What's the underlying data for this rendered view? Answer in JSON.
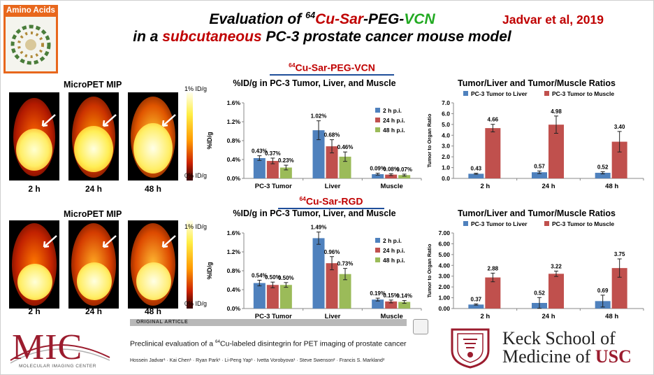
{
  "header": {
    "title_part1": "Evaluation of ",
    "title_isotope": "64",
    "title_cu_sar": "Cu-Sar",
    "title_peg": "-PEG-",
    "title_vcn": "VCN",
    "title_line2_part1": "in a ",
    "title_line2_sub": "subcutaneous",
    "title_line2_part2": " PC-3 prostate cancer mouse model",
    "citation": "Jadvar et al, 2019"
  },
  "journal": {
    "name": "Amino Acids"
  },
  "colors": {
    "accent_red": "#c00000",
    "green": "#22aa22",
    "bar_blue": "#4f81bd",
    "bar_red": "#c0504d",
    "bar_green": "#9bbb59",
    "usc_cardinal": "#9b1c2e"
  },
  "sections": [
    {
      "label_isotope": "64",
      "label_text": "Cu-Sar-PEG-VCN",
      "mip": {
        "title": "MicroPET MIP",
        "times": [
          "2 h",
          "24 h",
          "48 h"
        ],
        "scale_max": "1% ID/g",
        "scale_min": "0% ID/g"
      }
    },
    {
      "label_isotope": "64",
      "label_text": "Cu-Sar-RGD",
      "mip": {
        "title": "MicroPET MIP",
        "times": [
          "2 h",
          "24 h",
          "48 h"
        ],
        "scale_max": "1% ID/g",
        "scale_min": "0% ID/g"
      }
    }
  ],
  "chart_data": [
    {
      "type": "bar",
      "title": "%ID/g in PC-3 Tumor, Liver, and Muscle",
      "ylabel": "%ID/g",
      "ylim": [
        0,
        1.6
      ],
      "yticks": [
        "0.0%",
        "0.4%",
        "0.8%",
        "1.2%",
        "1.6%"
      ],
      "ytick_values": [
        0,
        0.4,
        0.8,
        1.2,
        1.6
      ],
      "categories": [
        "PC-3 Tumor",
        "Liver",
        "Muscle"
      ],
      "series": [
        {
          "name": "2 h p.i.",
          "values": [
            0.43,
            1.02,
            0.09
          ],
          "labels": [
            "0.43%",
            "1.02%",
            "0.09%"
          ],
          "err": [
            0.05,
            0.2,
            0.02
          ],
          "color": "#4f81bd"
        },
        {
          "name": "24 h p.i.",
          "values": [
            0.37,
            0.68,
            0.08
          ],
          "labels": [
            "0.37%",
            "0.68%",
            "0.08%"
          ],
          "err": [
            0.06,
            0.14,
            0.02
          ],
          "color": "#c0504d"
        },
        {
          "name": "48 h p.i.",
          "values": [
            0.23,
            0.46,
            0.07
          ],
          "labels": [
            "0.23%",
            "0.46%",
            "0.07%"
          ],
          "err": [
            0.05,
            0.1,
            0.02
          ],
          "color": "#9bbb59"
        }
      ],
      "legend": "right"
    },
    {
      "type": "bar",
      "title": "Tumor/Liver and Tumor/Muscle Ratios",
      "ylabel": "Tumor to Organ Ratio",
      "ylim": [
        0,
        7
      ],
      "yticks": [
        "0.0",
        "1.0",
        "2.0",
        "3.0",
        "4.0",
        "5.0",
        "6.0",
        "7.0"
      ],
      "ytick_values": [
        0,
        1,
        2,
        3,
        4,
        5,
        6,
        7
      ],
      "categories": [
        "2 h",
        "24 h",
        "48 h"
      ],
      "series": [
        {
          "name": "PC-3 Tumor to Liver",
          "values": [
            0.43,
            0.57,
            0.52
          ],
          "labels": [
            "0.43",
            "0.57",
            "0.52"
          ],
          "err": [
            0.05,
            0.12,
            0.1
          ],
          "color": "#4f81bd"
        },
        {
          "name": "PC-3 Tumor to Muscle",
          "values": [
            4.66,
            4.98,
            3.4
          ],
          "labels": [
            "4.66",
            "4.98",
            "3.40"
          ],
          "err": [
            0.35,
            0.8,
            0.95
          ],
          "color": "#c0504d"
        }
      ],
      "legend": "top"
    },
    {
      "type": "bar",
      "title": "%ID/g in PC-3 Tumor, Liver, and Muscle",
      "ylabel": "%ID/g",
      "ylim": [
        0,
        1.6
      ],
      "yticks": [
        "0.0%",
        "0.4%",
        "0.8%",
        "1.2%",
        "1.6%"
      ],
      "ytick_values": [
        0,
        0.4,
        0.8,
        1.2,
        1.6
      ],
      "categories": [
        "PC-3 Tumor",
        "Liver",
        "Muscle"
      ],
      "series": [
        {
          "name": "2 h p.i.",
          "values": [
            0.54,
            1.49,
            0.19
          ],
          "labels": [
            "0.54%",
            "1.49%",
            "0.19%"
          ],
          "err": [
            0.06,
            0.13,
            0.03
          ],
          "color": "#4f81bd"
        },
        {
          "name": "24 h p.i.",
          "values": [
            0.5,
            0.96,
            0.15
          ],
          "labels": [
            "0.50%",
            "0.96%",
            "0.15%"
          ],
          "err": [
            0.06,
            0.14,
            0.03
          ],
          "color": "#c0504d"
        },
        {
          "name": "48 h p.i.",
          "values": [
            0.5,
            0.73,
            0.14
          ],
          "labels": [
            "0.50%",
            "0.73%",
            "0.14%"
          ],
          "err": [
            0.05,
            0.12,
            0.03
          ],
          "color": "#9bbb59"
        }
      ],
      "legend": "right"
    },
    {
      "type": "bar",
      "title": "Tumor/Liver and Tumor/Muscle Ratios",
      "ylabel": "Tumor to Organ Ratio",
      "ylim": [
        0,
        7
      ],
      "yticks": [
        "0.00",
        "1.00",
        "2.00",
        "3.00",
        "4.00",
        "5.00",
        "6.00",
        "7.00"
      ],
      "ytick_values": [
        0,
        1,
        2,
        3,
        4,
        5,
        6,
        7
      ],
      "categories": [
        "2 h",
        "24 h",
        "48 h"
      ],
      "series": [
        {
          "name": "PC-3 Tumor to Liver",
          "values": [
            0.37,
            0.52,
            0.69
          ],
          "labels": [
            "0.37",
            "0.52",
            "0.69"
          ],
          "err": [
            0.06,
            0.5,
            0.55
          ],
          "color": "#4f81bd"
        },
        {
          "name": "PC-3 Tumor to Muscle",
          "values": [
            2.88,
            3.22,
            3.75
          ],
          "labels": [
            "2.88",
            "3.22",
            "3.75"
          ],
          "err": [
            0.4,
            0.25,
            0.85
          ],
          "color": "#c0504d"
        }
      ],
      "legend": "top"
    }
  ],
  "reference": {
    "tag": "ORIGINAL ARTICLE",
    "title_pre": "Preclinical evaluation of a ",
    "title_iso": "64",
    "title_post": "Cu-labeled disintegrin for PET imaging of prostate cancer",
    "authors": "Hossein Jadvar¹ · Kai Chen¹ · Ryan Park¹ · Li-Peng Yap¹ · Ivetta Vorobyova¹ · Steve Swenson² · Francis S. Markland²"
  },
  "footer": {
    "mic_logo": "MIC",
    "mic_subtitle": "MOLECULAR IMAGING CENTER",
    "keck_line1": "Keck School of",
    "keck_line2_pre": "Medicine of ",
    "keck_line2_usc": "USC"
  }
}
